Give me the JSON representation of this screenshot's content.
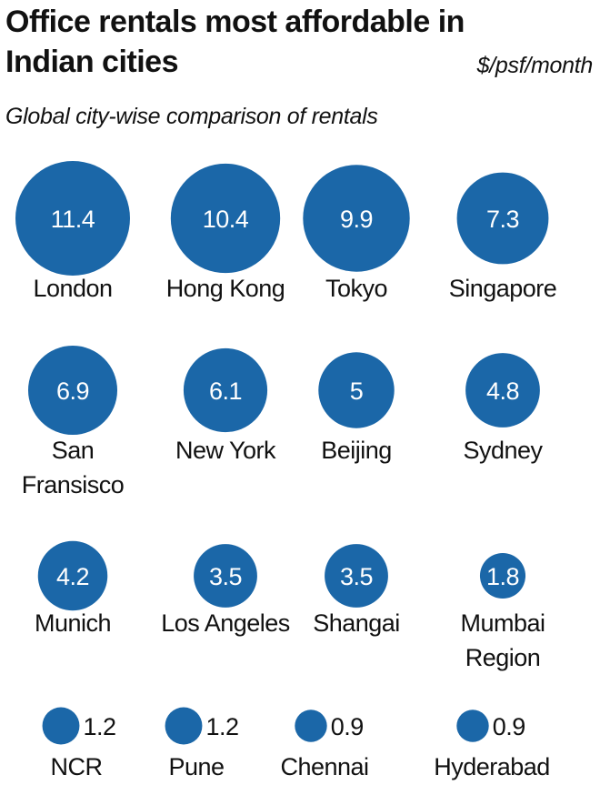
{
  "title": "Office rentals most affordable in Indian cities",
  "unit": "$/psf/month",
  "subtitle": "Global city-wise comparison of rentals",
  "colors": {
    "bubble": "#1b67a8",
    "value_in": "#ffffff",
    "value_out": "#111111",
    "label": "#111111"
  },
  "chart_data": {
    "type": "bubble",
    "title": "Office rentals most affordable in Indian cities",
    "subtitle": "Global city-wise comparison of rentals",
    "unit": "$/psf/month",
    "categories": [
      "London",
      "Hong Kong",
      "Tokyo",
      "Singapore",
      "San Fransisco",
      "New York",
      "Beijing",
      "Sydney",
      "Munich",
      "Los Angeles",
      "Shangai",
      "Mumbai Region",
      "NCR",
      "Pune",
      "Chennai",
      "Hyderabad"
    ],
    "series": [
      {
        "values": [
          11.4,
          10.4,
          9.9,
          7.3,
          6.9,
          6.1,
          5,
          4.8,
          4.2,
          3.5,
          3.5,
          1.8,
          1.2,
          1.2,
          0.9,
          0.9
        ]
      }
    ],
    "cities": [
      {
        "name": "London",
        "label_lines": [
          "London"
        ],
        "value": 11.4,
        "value_text": "11.4"
      },
      {
        "name": "Hong Kong",
        "label_lines": [
          "Hong Kong"
        ],
        "value": 10.4,
        "value_text": "10.4"
      },
      {
        "name": "Tokyo",
        "label_lines": [
          "Tokyo"
        ],
        "value": 9.9,
        "value_text": "9.9"
      },
      {
        "name": "Singapore",
        "label_lines": [
          "Singapore"
        ],
        "value": 7.3,
        "value_text": "7.3"
      },
      {
        "name": "San Fransisco",
        "label_lines": [
          "San",
          "Fransisco"
        ],
        "value": 6.9,
        "value_text": "6.9"
      },
      {
        "name": "New York",
        "label_lines": [
          "New York"
        ],
        "value": 6.1,
        "value_text": "6.1"
      },
      {
        "name": "Beijing",
        "label_lines": [
          "Beijing"
        ],
        "value": 5,
        "value_text": "5"
      },
      {
        "name": "Sydney",
        "label_lines": [
          "Sydney"
        ],
        "value": 4.8,
        "value_text": "4.8"
      },
      {
        "name": "Munich",
        "label_lines": [
          "Munich"
        ],
        "value": 4.2,
        "value_text": "4.2"
      },
      {
        "name": "Los Angeles",
        "label_lines": [
          "Los Angeles"
        ],
        "value": 3.5,
        "value_text": "3.5"
      },
      {
        "name": "Shangai",
        "label_lines": [
          "Shangai"
        ],
        "value": 3.5,
        "value_text": "3.5"
      },
      {
        "name": "Mumbai Region",
        "label_lines": [
          "Mumbai",
          "Region"
        ],
        "value": 1.8,
        "value_text": "1.8"
      },
      {
        "name": "NCR",
        "label_lines": [
          "NCR"
        ],
        "value": 1.2,
        "value_text": "1.2"
      },
      {
        "name": "Pune",
        "label_lines": [
          "Pune"
        ],
        "value": 1.2,
        "value_text": "1.2"
      },
      {
        "name": "Chennai",
        "label_lines": [
          "Chennai"
        ],
        "value": 0.9,
        "value_text": "0.9"
      },
      {
        "name": "Hyderabad",
        "label_lines": [
          "Hyderabad"
        ],
        "value": 0.9,
        "value_text": "0.9"
      }
    ]
  }
}
